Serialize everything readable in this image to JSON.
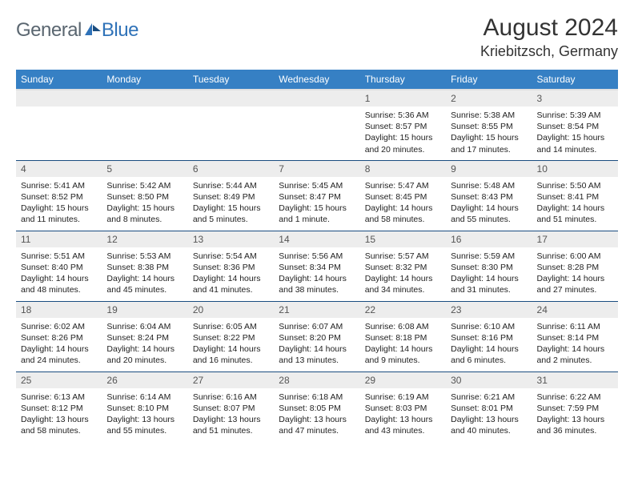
{
  "brand": {
    "general": "General",
    "blue": "Blue"
  },
  "title": "August 2024",
  "location": "Kriebitzsch, Germany",
  "colors": {
    "header_bg": "#3680c4",
    "header_fg": "#ffffff",
    "grid_border": "#1a4d80",
    "daynum_bg": "#ededed",
    "logo_general": "#5a6670",
    "logo_blue": "#2f72b8"
  },
  "weekdays": [
    "Sunday",
    "Monday",
    "Tuesday",
    "Wednesday",
    "Thursday",
    "Friday",
    "Saturday"
  ],
  "weeks": [
    [
      null,
      null,
      null,
      null,
      {
        "n": "1",
        "sr": "5:36 AM",
        "ss": "8:57 PM",
        "dl": "15 hours and 20 minutes."
      },
      {
        "n": "2",
        "sr": "5:38 AM",
        "ss": "8:55 PM",
        "dl": "15 hours and 17 minutes."
      },
      {
        "n": "3",
        "sr": "5:39 AM",
        "ss": "8:54 PM",
        "dl": "15 hours and 14 minutes."
      }
    ],
    [
      {
        "n": "4",
        "sr": "5:41 AM",
        "ss": "8:52 PM",
        "dl": "15 hours and 11 minutes."
      },
      {
        "n": "5",
        "sr": "5:42 AM",
        "ss": "8:50 PM",
        "dl": "15 hours and 8 minutes."
      },
      {
        "n": "6",
        "sr": "5:44 AM",
        "ss": "8:49 PM",
        "dl": "15 hours and 5 minutes."
      },
      {
        "n": "7",
        "sr": "5:45 AM",
        "ss": "8:47 PM",
        "dl": "15 hours and 1 minute."
      },
      {
        "n": "8",
        "sr": "5:47 AM",
        "ss": "8:45 PM",
        "dl": "14 hours and 58 minutes."
      },
      {
        "n": "9",
        "sr": "5:48 AM",
        "ss": "8:43 PM",
        "dl": "14 hours and 55 minutes."
      },
      {
        "n": "10",
        "sr": "5:50 AM",
        "ss": "8:41 PM",
        "dl": "14 hours and 51 minutes."
      }
    ],
    [
      {
        "n": "11",
        "sr": "5:51 AM",
        "ss": "8:40 PM",
        "dl": "14 hours and 48 minutes."
      },
      {
        "n": "12",
        "sr": "5:53 AM",
        "ss": "8:38 PM",
        "dl": "14 hours and 45 minutes."
      },
      {
        "n": "13",
        "sr": "5:54 AM",
        "ss": "8:36 PM",
        "dl": "14 hours and 41 minutes."
      },
      {
        "n": "14",
        "sr": "5:56 AM",
        "ss": "8:34 PM",
        "dl": "14 hours and 38 minutes."
      },
      {
        "n": "15",
        "sr": "5:57 AM",
        "ss": "8:32 PM",
        "dl": "14 hours and 34 minutes."
      },
      {
        "n": "16",
        "sr": "5:59 AM",
        "ss": "8:30 PM",
        "dl": "14 hours and 31 minutes."
      },
      {
        "n": "17",
        "sr": "6:00 AM",
        "ss": "8:28 PM",
        "dl": "14 hours and 27 minutes."
      }
    ],
    [
      {
        "n": "18",
        "sr": "6:02 AM",
        "ss": "8:26 PM",
        "dl": "14 hours and 24 minutes."
      },
      {
        "n": "19",
        "sr": "6:04 AM",
        "ss": "8:24 PM",
        "dl": "14 hours and 20 minutes."
      },
      {
        "n": "20",
        "sr": "6:05 AM",
        "ss": "8:22 PM",
        "dl": "14 hours and 16 minutes."
      },
      {
        "n": "21",
        "sr": "6:07 AM",
        "ss": "8:20 PM",
        "dl": "14 hours and 13 minutes."
      },
      {
        "n": "22",
        "sr": "6:08 AM",
        "ss": "8:18 PM",
        "dl": "14 hours and 9 minutes."
      },
      {
        "n": "23",
        "sr": "6:10 AM",
        "ss": "8:16 PM",
        "dl": "14 hours and 6 minutes."
      },
      {
        "n": "24",
        "sr": "6:11 AM",
        "ss": "8:14 PM",
        "dl": "14 hours and 2 minutes."
      }
    ],
    [
      {
        "n": "25",
        "sr": "6:13 AM",
        "ss": "8:12 PM",
        "dl": "13 hours and 58 minutes."
      },
      {
        "n": "26",
        "sr": "6:14 AM",
        "ss": "8:10 PM",
        "dl": "13 hours and 55 minutes."
      },
      {
        "n": "27",
        "sr": "6:16 AM",
        "ss": "8:07 PM",
        "dl": "13 hours and 51 minutes."
      },
      {
        "n": "28",
        "sr": "6:18 AM",
        "ss": "8:05 PM",
        "dl": "13 hours and 47 minutes."
      },
      {
        "n": "29",
        "sr": "6:19 AM",
        "ss": "8:03 PM",
        "dl": "13 hours and 43 minutes."
      },
      {
        "n": "30",
        "sr": "6:21 AM",
        "ss": "8:01 PM",
        "dl": "13 hours and 40 minutes."
      },
      {
        "n": "31",
        "sr": "6:22 AM",
        "ss": "7:59 PM",
        "dl": "13 hours and 36 minutes."
      }
    ]
  ],
  "labels": {
    "sunrise": "Sunrise:",
    "sunset": "Sunset:",
    "daylight": "Daylight:"
  }
}
